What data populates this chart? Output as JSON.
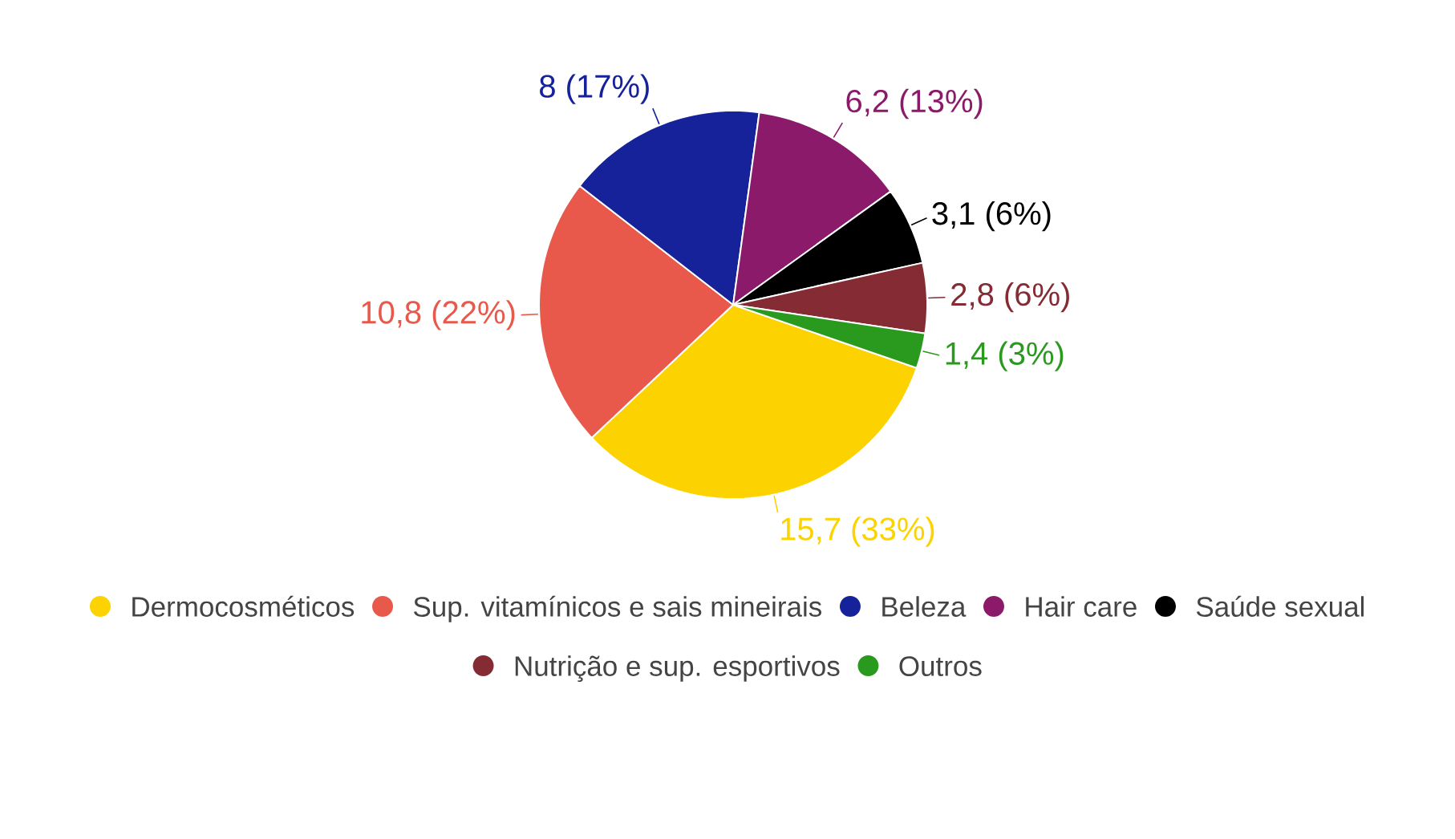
{
  "chart_data": {
    "type": "pie",
    "categories": [
      "Dermocosméticos",
      "Sup. vitamínicos e sais mineirais",
      "Beleza",
      "Hair care",
      "Saúde sexual",
      "Nutrição e sup. esportivos",
      "Outros"
    ],
    "values": [
      15.7,
      10.8,
      8,
      6.2,
      3.1,
      2.8,
      1.4
    ],
    "colors": [
      "#fdd201",
      "#e8594b",
      "#16229a",
      "#8c1a6a",
      "#000000",
      "#842b33",
      "#2a9a1e"
    ],
    "value_labels": [
      "15,7 (33%)",
      "10,8 (22%)",
      "8 (17%)",
      "6,2 (13%)",
      "3,1 (6%)",
      "2,8 (6%)",
      "1,4 (3%)"
    ],
    "legend": "bottom"
  }
}
